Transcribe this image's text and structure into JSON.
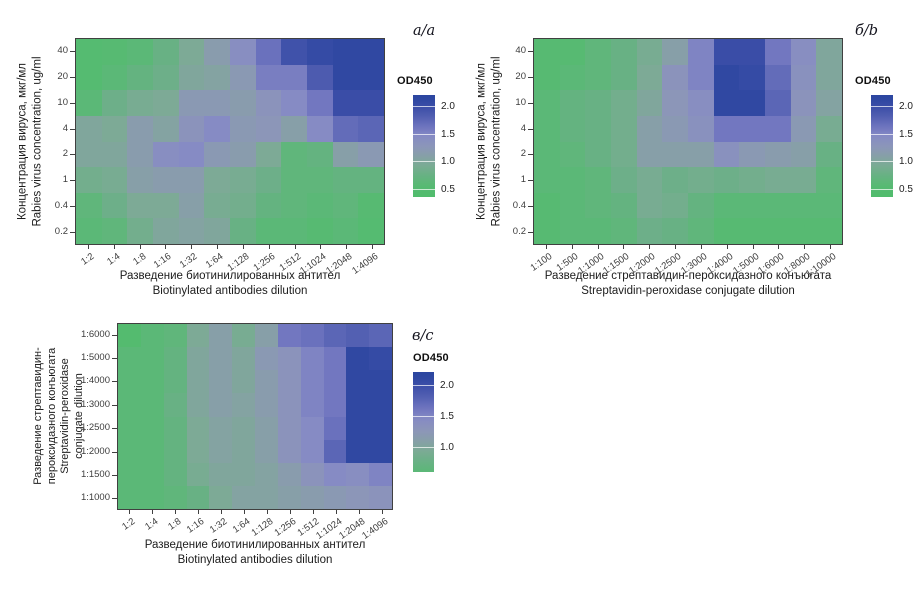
{
  "figure": {
    "background": "#ffffff",
    "panel_tags": [
      "а/a",
      "б/b",
      "в/c"
    ]
  },
  "color_scale": {
    "low_color": "#50bc6c",
    "high_color": "#2b46a0",
    "stops": [
      [
        0.35,
        "#50bc6c"
      ],
      [
        0.55,
        "#57ba72"
      ],
      [
        0.75,
        "#68b184"
      ],
      [
        0.95,
        "#7daa96"
      ],
      [
        1.1,
        "#879fa8"
      ],
      [
        1.25,
        "#8c96b8"
      ],
      [
        1.45,
        "#868bc4"
      ],
      [
        1.6,
        "#7277c0"
      ],
      [
        1.8,
        "#5360b2"
      ],
      [
        2.0,
        "#3a4da7"
      ],
      [
        2.15,
        "#2b46a0"
      ]
    ]
  },
  "chart_data": [
    {
      "type": "heatmap",
      "panel_label": "а/a",
      "xlabel_lines": [
        "Разведение биотинилированных антител",
        "Biotinylated antibodies dilution"
      ],
      "ylabel_lines": [
        "Концентрация вируса, мкг/мл",
        "Rabies virus concentration, ug/ml"
      ],
      "x_categories": [
        "1:2",
        "1:4",
        "1:8",
        "1:16",
        "1:32",
        "1:64",
        "1:128",
        "1:256",
        "1:512",
        "1:1024",
        "1:2048",
        "1:4096"
      ],
      "y_categories": [
        "40",
        "20",
        "10",
        "4",
        "2",
        "1",
        "0.4",
        "0.2"
      ],
      "values": [
        [
          0.5,
          0.55,
          0.6,
          0.75,
          0.95,
          1.15,
          1.4,
          1.65,
          1.95,
          2.05,
          2.1,
          2.1
        ],
        [
          0.5,
          0.6,
          0.7,
          0.8,
          1.0,
          1.05,
          1.2,
          1.55,
          1.55,
          1.85,
          2.1,
          2.1
        ],
        [
          0.6,
          0.8,
          0.9,
          0.95,
          1.2,
          1.2,
          1.15,
          1.3,
          1.45,
          1.6,
          2.0,
          2.0
        ],
        [
          1.0,
          0.95,
          1.15,
          1.05,
          1.3,
          1.45,
          1.2,
          1.25,
          1.1,
          1.45,
          1.7,
          1.75
        ],
        [
          1.0,
          1.0,
          1.15,
          1.4,
          1.45,
          1.2,
          1.15,
          0.95,
          0.65,
          0.7,
          1.1,
          1.2
        ],
        [
          0.85,
          0.9,
          1.1,
          1.15,
          1.15,
          0.95,
          0.9,
          0.8,
          0.65,
          0.65,
          0.7,
          0.7
        ],
        [
          0.65,
          0.8,
          0.95,
          0.95,
          1.1,
          0.9,
          0.85,
          0.7,
          0.65,
          0.6,
          0.65,
          0.55
        ],
        [
          0.6,
          0.65,
          0.85,
          1.0,
          1.05,
          1.0,
          0.75,
          0.6,
          0.6,
          0.55,
          0.6,
          0.5
        ]
      ],
      "legend": {
        "title": "OD450",
        "ticks": [
          2.0,
          1.5,
          1.0,
          0.5
        ],
        "domain": [
          0.35,
          2.2
        ]
      }
    },
    {
      "type": "heatmap",
      "panel_label": "б/b",
      "xlabel_lines": [
        "Разведение стрептавидин-пероксидазного конъюгата",
        "Streptavidin-peroxidase conjugate dilution"
      ],
      "ylabel_lines": [
        "Концентрация вируса, мкг/мл",
        "Rabies virus concentration, ug/ml"
      ],
      "x_categories": [
        "1:100",
        "1:500",
        "1:1000",
        "1:1500",
        "1:2000",
        "1:2500",
        "1:3000",
        "1:4000",
        "1:5000",
        "1:6000",
        "1:8000",
        "1:10000"
      ],
      "y_categories": [
        "40",
        "20",
        "10",
        "4",
        "2",
        "1",
        "0.4",
        "0.2"
      ],
      "values": [
        [
          0.55,
          0.55,
          0.65,
          0.75,
          0.9,
          1.1,
          1.5,
          2.0,
          2.0,
          1.6,
          1.4,
          1.0
        ],
        [
          0.55,
          0.6,
          0.65,
          0.75,
          0.95,
          1.3,
          1.5,
          2.1,
          2.05,
          1.7,
          1.35,
          1.0
        ],
        [
          0.6,
          0.7,
          0.75,
          0.85,
          1.0,
          1.25,
          1.4,
          2.1,
          2.1,
          1.75,
          1.3,
          1.05
        ],
        [
          0.6,
          0.7,
          0.75,
          0.85,
          1.1,
          1.2,
          1.35,
          1.6,
          1.6,
          1.6,
          1.2,
          0.9
        ],
        [
          0.6,
          0.65,
          0.75,
          0.85,
          1.1,
          1.1,
          1.1,
          1.35,
          1.2,
          1.15,
          1.1,
          0.75
        ],
        [
          0.6,
          0.6,
          0.65,
          0.8,
          0.9,
          0.8,
          0.85,
          0.8,
          0.85,
          0.9,
          0.9,
          0.65
        ],
        [
          0.55,
          0.6,
          0.65,
          0.7,
          0.9,
          0.85,
          0.7,
          0.6,
          0.6,
          0.6,
          0.6,
          0.6
        ],
        [
          0.55,
          0.6,
          0.6,
          0.65,
          0.8,
          0.75,
          0.65,
          0.55,
          0.55,
          0.55,
          0.55,
          0.55
        ]
      ],
      "legend": {
        "title": "OD450",
        "ticks": [
          2.0,
          1.5,
          1.0,
          0.5
        ],
        "domain": [
          0.35,
          2.2
        ]
      }
    },
    {
      "type": "heatmap",
      "panel_label": "в/c",
      "xlabel_lines": [
        "Разведение биотинилированных антител",
        "Biotinylated antibodies dilution"
      ],
      "ylabel_lines": [
        "Разведение стрептавидин-",
        "пероксидазного конъюгата",
        "Streptavidin-peroxidase",
        "conjugate dilution"
      ],
      "x_categories": [
        "1:2",
        "1:4",
        "1:8",
        "1:16",
        "1:32",
        "1:64",
        "1:128",
        "1:256",
        "1:512",
        "1:1024",
        "1:2048",
        "1:4096"
      ],
      "y_categories": [
        "1:6000",
        "1:5000",
        "1:4000",
        "1:3000",
        "1:2500",
        "1:2000",
        "1:1500",
        "1:1000"
      ],
      "values": [
        [
          0.45,
          0.6,
          0.65,
          0.95,
          1.1,
          0.9,
          1.1,
          1.6,
          1.65,
          1.75,
          1.8,
          1.75
        ],
        [
          0.6,
          0.6,
          0.7,
          1.0,
          1.1,
          1.0,
          1.2,
          1.3,
          1.5,
          1.6,
          2.1,
          2.05
        ],
        [
          0.6,
          0.6,
          0.7,
          1.0,
          1.1,
          1.0,
          1.15,
          1.3,
          1.5,
          1.6,
          2.1,
          2.1
        ],
        [
          0.6,
          0.6,
          0.75,
          1.0,
          1.1,
          1.05,
          1.15,
          1.3,
          1.5,
          1.6,
          2.1,
          2.1
        ],
        [
          0.6,
          0.6,
          0.7,
          0.95,
          1.05,
          1.0,
          1.1,
          1.3,
          1.45,
          1.65,
          2.1,
          2.1
        ],
        [
          0.6,
          0.6,
          0.7,
          0.95,
          1.05,
          1.0,
          1.1,
          1.3,
          1.45,
          1.75,
          2.1,
          2.1
        ],
        [
          0.6,
          0.6,
          0.7,
          0.9,
          1.0,
          1.0,
          1.05,
          1.15,
          1.3,
          1.45,
          1.4,
          1.5
        ],
        [
          0.6,
          0.6,
          0.65,
          0.75,
          0.95,
          1.05,
          1.05,
          1.1,
          1.15,
          1.2,
          1.25,
          1.3
        ]
      ],
      "legend": {
        "title": "OD450",
        "ticks": [
          2.0,
          1.5,
          1.0
        ],
        "domain": [
          0.6,
          2.2
        ]
      }
    }
  ]
}
